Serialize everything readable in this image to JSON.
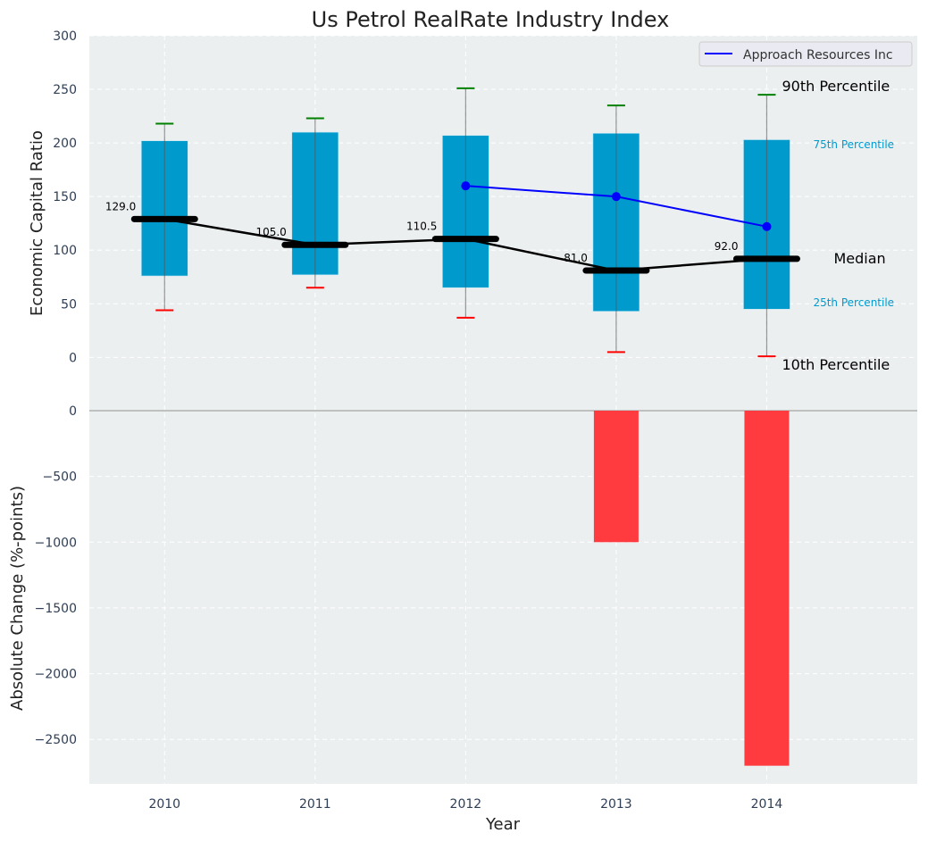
{
  "chart_data": [
    {
      "type": "box",
      "title": "Us Petrol RealRate Industry Index",
      "ylabel": "Economic Capital Ratio",
      "ylim": [
        -48,
        300
      ],
      "yticks": [
        0,
        50,
        100,
        150,
        200,
        250,
        300
      ],
      "categories": [
        2010,
        2011,
        2012,
        2013,
        2014
      ],
      "p10": [
        44,
        65,
        37,
        5,
        1
      ],
      "q25": [
        76,
        77,
        65,
        43,
        45
      ],
      "median": [
        129.0,
        105.0,
        110.5,
        81.0,
        92.0
      ],
      "median_labels": [
        "129.0",
        "105.0",
        "110.5",
        "81.0",
        "92.0"
      ],
      "q75": [
        202,
        210,
        207,
        209,
        203
      ],
      "p90": [
        218,
        223,
        251,
        235,
        245
      ],
      "series": [
        {
          "name": "Approach Resources Inc",
          "x": [
            2012,
            2013,
            2014
          ],
          "values": [
            160,
            150,
            122
          ],
          "color": "#0000ff"
        }
      ],
      "legend": {
        "entries": [
          "Approach Resources Inc"
        ],
        "placement": "top-right"
      },
      "annotations": {
        "p90": "90th Percentile",
        "q75": "75th Percentile",
        "median": "Median",
        "q25": "25th Percentile",
        "p10": "10th Percentile"
      },
      "colors": {
        "box": "#009ACD",
        "p90": "#008000",
        "p10": "#ff0000",
        "median": "#000000",
        "background": "#ECEFF0"
      },
      "grid": true
    },
    {
      "type": "bar",
      "xlabel": "Year",
      "ylabel": "Absolute Change (%-points)",
      "ylim": [
        -2838,
        0
      ],
      "yticks": [
        0,
        -500,
        -1000,
        -1500,
        -2000,
        -2500
      ],
      "ytick_labels": [
        "0",
        "−500",
        "−1000",
        "−1500",
        "−2000",
        "−2500"
      ],
      "categories": [
        2010,
        2011,
        2012,
        2013,
        2014
      ],
      "values": [
        0,
        0,
        0,
        -1000,
        -2700
      ],
      "color": "#ff3b3f",
      "xlim": [
        2009.5,
        2015
      ],
      "grid": true
    }
  ]
}
